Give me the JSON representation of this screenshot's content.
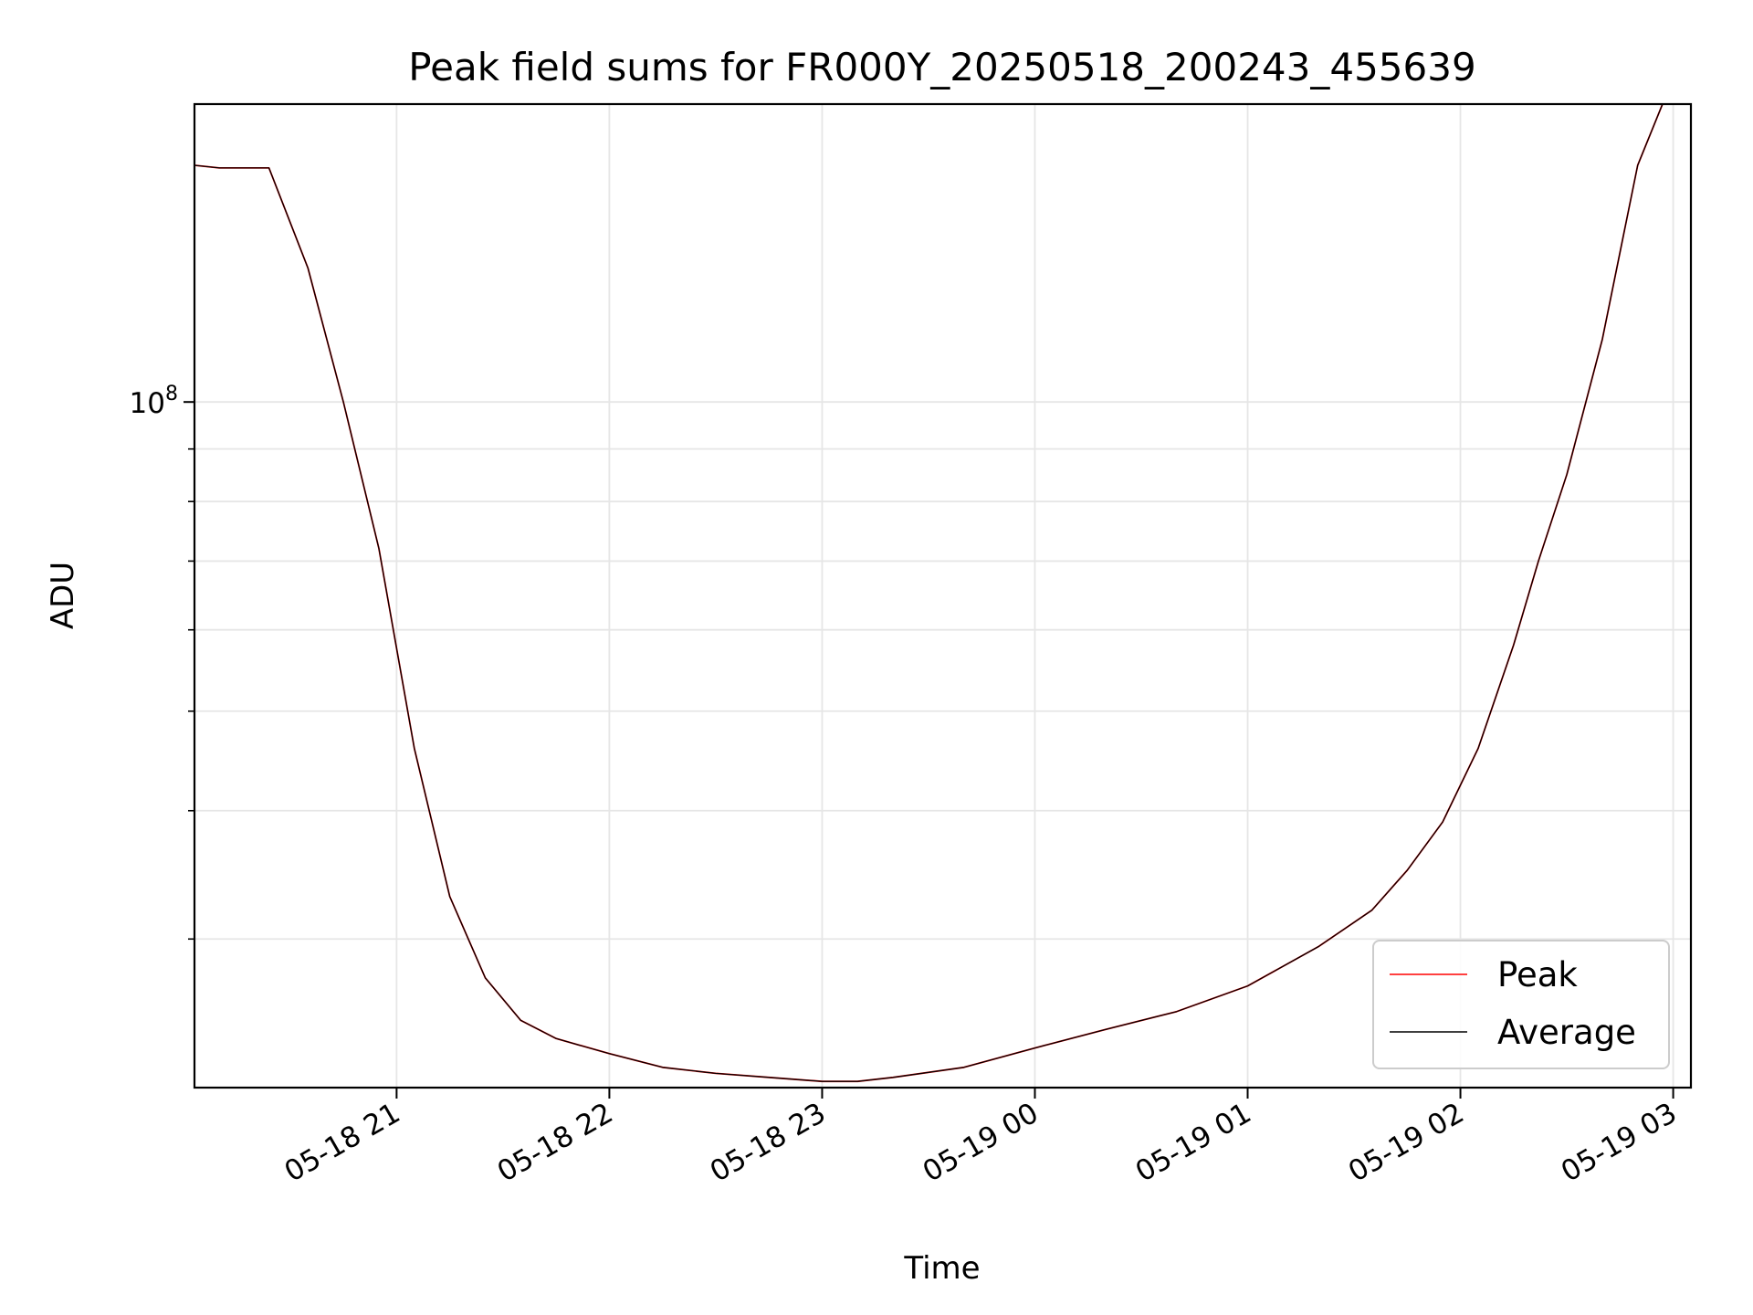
{
  "chart_data": {
    "type": "line",
    "title": "Peak field sums for FR000Y_20250518_200243_455639",
    "xlabel": "Time",
    "ylabel": "ADU",
    "x_scale": "time",
    "y_scale": "log",
    "xlim": [
      "2025-05-18 20:03",
      "2025-05-19 03:05"
    ],
    "ylim": [
      21500000,
      195000000
    ],
    "x_ticks": [
      {
        "value": "2025-05-18 21:00",
        "label": "05-18 21"
      },
      {
        "value": "2025-05-18 22:00",
        "label": "05-18 22"
      },
      {
        "value": "2025-05-18 23:00",
        "label": "05-18 23"
      },
      {
        "value": "2025-05-19 00:00",
        "label": "05-19 00"
      },
      {
        "value": "2025-05-19 01:00",
        "label": "05-19 01"
      },
      {
        "value": "2025-05-19 02:00",
        "label": "05-19 02"
      },
      {
        "value": "2025-05-19 03:00",
        "label": "05-19 03"
      }
    ],
    "y_ticks": [
      {
        "value": 100000000,
        "base": "10",
        "exp": "8"
      }
    ],
    "y_minor_ticks": [
      30000000,
      40000000,
      50000000,
      60000000,
      70000000,
      80000000,
      90000000
    ],
    "grid": true,
    "legend_position": "lower-right",
    "series": [
      {
        "name": "Peak",
        "color": "#ff0000",
        "x": [
          "2025-05-18 20:03",
          "2025-05-18 20:10",
          "2025-05-18 20:24",
          "2025-05-18 20:35",
          "2025-05-18 20:45",
          "2025-05-18 20:55",
          "2025-05-18 21:05",
          "2025-05-18 21:15",
          "2025-05-18 21:25",
          "2025-05-18 21:35",
          "2025-05-18 21:45",
          "2025-05-18 22:00",
          "2025-05-18 22:15",
          "2025-05-18 22:30",
          "2025-05-18 22:45",
          "2025-05-18 23:00",
          "2025-05-18 23:10",
          "2025-05-18 23:20",
          "2025-05-18 23:40",
          "2025-05-19 00:00",
          "2025-05-19 00:20",
          "2025-05-19 00:40",
          "2025-05-19 01:00",
          "2025-05-19 01:20",
          "2025-05-19 01:35",
          "2025-05-19 01:45",
          "2025-05-19 01:55",
          "2025-05-19 02:05",
          "2025-05-19 02:15",
          "2025-05-19 02:22",
          "2025-05-19 02:30",
          "2025-05-19 02:40",
          "2025-05-19 02:50",
          "2025-05-19 02:57"
        ],
        "y": [
          170000000,
          169000000,
          169000000,
          135000000,
          100000000,
          72000000,
          46000000,
          33000000,
          27500000,
          25000000,
          24000000,
          23200000,
          22500000,
          22200000,
          22000000,
          21800000,
          21800000,
          22000000,
          22500000,
          23500000,
          24500000,
          25500000,
          27000000,
          29500000,
          32000000,
          35000000,
          39000000,
          46000000,
          58000000,
          70000000,
          85000000,
          115000000,
          170000000,
          195000000
        ]
      },
      {
        "name": "Average",
        "color": "#000000",
        "x": [
          "2025-05-18 20:03",
          "2025-05-18 20:10",
          "2025-05-18 20:24",
          "2025-05-18 20:35",
          "2025-05-18 20:45",
          "2025-05-18 20:55",
          "2025-05-18 21:05",
          "2025-05-18 21:15",
          "2025-05-18 21:25",
          "2025-05-18 21:35",
          "2025-05-18 21:45",
          "2025-05-18 22:00",
          "2025-05-18 22:15",
          "2025-05-18 22:30",
          "2025-05-18 22:45",
          "2025-05-18 23:00",
          "2025-05-18 23:10",
          "2025-05-18 23:20",
          "2025-05-18 23:40",
          "2025-05-19 00:00",
          "2025-05-19 00:20",
          "2025-05-19 00:40",
          "2025-05-19 01:00",
          "2025-05-19 01:20",
          "2025-05-19 01:35",
          "2025-05-19 01:45",
          "2025-05-19 01:55",
          "2025-05-19 02:05",
          "2025-05-19 02:15",
          "2025-05-19 02:22",
          "2025-05-19 02:30",
          "2025-05-19 02:40",
          "2025-05-19 02:50",
          "2025-05-19 02:57"
        ],
        "y": [
          170000000,
          169000000,
          169000000,
          135000000,
          100000000,
          72000000,
          46000000,
          33000000,
          27500000,
          25000000,
          24000000,
          23200000,
          22500000,
          22200000,
          22000000,
          21800000,
          21800000,
          22000000,
          22500000,
          23500000,
          24500000,
          25500000,
          27000000,
          29500000,
          32000000,
          35000000,
          39000000,
          46000000,
          58000000,
          70000000,
          85000000,
          115000000,
          170000000,
          195000000
        ]
      }
    ]
  }
}
